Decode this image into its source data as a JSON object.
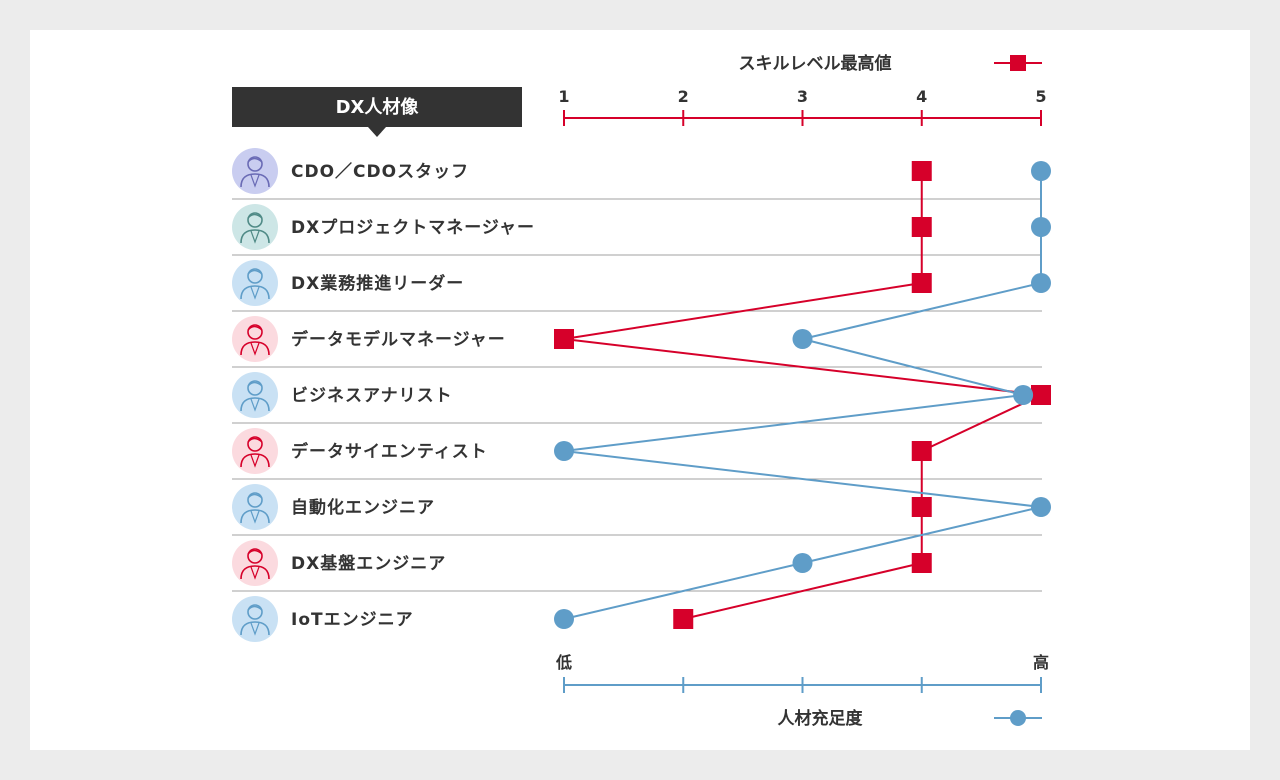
{
  "header": {
    "label": "DX人材像"
  },
  "legend_top": {
    "label": "スキルレベル最高値"
  },
  "legend_bottom": {
    "label": "人材充足度"
  },
  "top_axis": {
    "ticks": [
      "1",
      "2",
      "3",
      "4",
      "5"
    ]
  },
  "bottom_axis": {
    "low_label": "低",
    "high_label": "高"
  },
  "colors": {
    "skill": "#d6002a",
    "staffing": "#5f9dc8",
    "header_bg": "#333333",
    "divider": "#a0a0a0"
  },
  "chart_data": {
    "type": "line",
    "categories": [
      "CDO／CDOスタッフ",
      "DXプロジェクトマネージャー",
      "DX業務推進リーダー",
      "データモデルマネージャー",
      "ビジネスアナリスト",
      "データサイエンティスト",
      "自動化エンジニア",
      "DX基盤エンジニア",
      "IoTエンジニア"
    ],
    "icon_colors": [
      "purple",
      "teal",
      "blue",
      "red",
      "blue",
      "red",
      "blue",
      "red",
      "blue"
    ],
    "xlim": [
      1,
      5
    ],
    "series": [
      {
        "name": "スキルレベル最高値",
        "marker": "square",
        "color": "#d6002a",
        "values": [
          4,
          4,
          4,
          1,
          5,
          4,
          4,
          4,
          2
        ]
      },
      {
        "name": "人材充足度",
        "marker": "circle",
        "color": "#5f9dc8",
        "values": [
          5,
          5,
          5,
          3,
          4.85,
          1,
          5,
          3,
          1
        ]
      }
    ]
  }
}
